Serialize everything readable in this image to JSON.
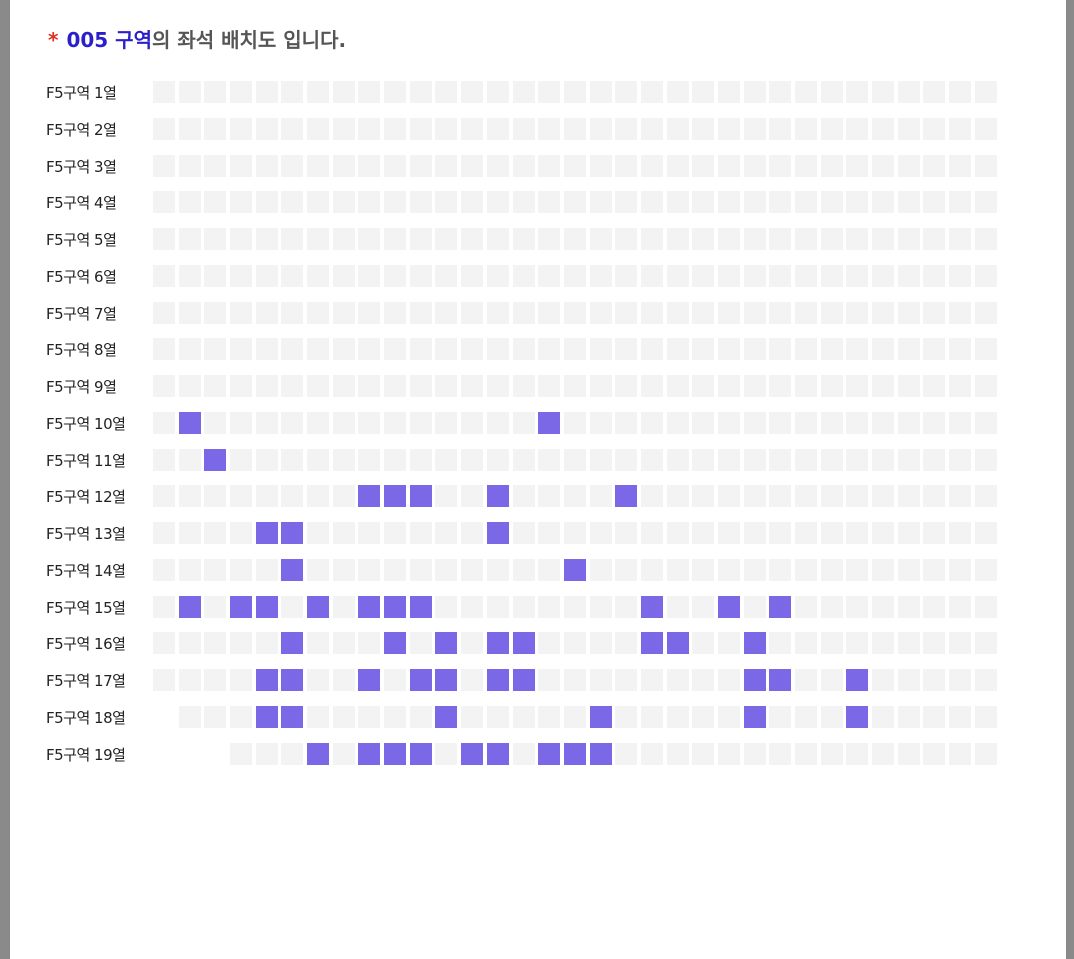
{
  "header": {
    "marker": "*",
    "section": "005 구역",
    "text": "의 좌석 배치도 입니다."
  },
  "rows": [
    {
      "label": "F5구역 1열",
      "seats": [
        0,
        0,
        0,
        0,
        0,
        0,
        0,
        0,
        0,
        0,
        0,
        0,
        0,
        0,
        0,
        0,
        0,
        0,
        0,
        0,
        0,
        0,
        0,
        0,
        0,
        0,
        0,
        0,
        0,
        0,
        0,
        0,
        0
      ]
    },
    {
      "label": "F5구역 2열",
      "seats": [
        0,
        0,
        0,
        0,
        0,
        0,
        0,
        0,
        0,
        0,
        0,
        0,
        0,
        0,
        0,
        0,
        0,
        0,
        0,
        0,
        0,
        0,
        0,
        0,
        0,
        0,
        0,
        0,
        0,
        0,
        0,
        0,
        0
      ]
    },
    {
      "label": "F5구역 3열",
      "seats": [
        0,
        0,
        0,
        0,
        0,
        0,
        0,
        0,
        0,
        0,
        0,
        0,
        0,
        0,
        0,
        0,
        0,
        0,
        0,
        0,
        0,
        0,
        0,
        0,
        0,
        0,
        0,
        0,
        0,
        0,
        0,
        0,
        0
      ]
    },
    {
      "label": "F5구역 4열",
      "seats": [
        0,
        0,
        0,
        0,
        0,
        0,
        0,
        0,
        0,
        0,
        0,
        0,
        0,
        0,
        0,
        0,
        0,
        0,
        0,
        0,
        0,
        0,
        0,
        0,
        0,
        0,
        0,
        0,
        0,
        0,
        0,
        0,
        0
      ]
    },
    {
      "label": "F5구역 5열",
      "seats": [
        0,
        0,
        0,
        0,
        0,
        0,
        0,
        0,
        0,
        0,
        0,
        0,
        0,
        0,
        0,
        0,
        0,
        0,
        0,
        0,
        0,
        0,
        0,
        0,
        0,
        0,
        0,
        0,
        0,
        0,
        0,
        0,
        0
      ]
    },
    {
      "label": "F5구역 6열",
      "seats": [
        0,
        0,
        0,
        0,
        0,
        0,
        0,
        0,
        0,
        0,
        0,
        0,
        0,
        0,
        0,
        0,
        0,
        0,
        0,
        0,
        0,
        0,
        0,
        0,
        0,
        0,
        0,
        0,
        0,
        0,
        0,
        0,
        0
      ]
    },
    {
      "label": "F5구역 7열",
      "seats": [
        0,
        0,
        0,
        0,
        0,
        0,
        0,
        0,
        0,
        0,
        0,
        0,
        0,
        0,
        0,
        0,
        0,
        0,
        0,
        0,
        0,
        0,
        0,
        0,
        0,
        0,
        0,
        0,
        0,
        0,
        0,
        0,
        0
      ]
    },
    {
      "label": "F5구역 8열",
      "seats": [
        0,
        0,
        0,
        0,
        0,
        0,
        0,
        0,
        0,
        0,
        0,
        0,
        0,
        0,
        0,
        0,
        0,
        0,
        0,
        0,
        0,
        0,
        0,
        0,
        0,
        0,
        0,
        0,
        0,
        0,
        0,
        0,
        0
      ]
    },
    {
      "label": "F5구역 9열",
      "seats": [
        0,
        0,
        0,
        0,
        0,
        0,
        0,
        0,
        0,
        0,
        0,
        0,
        0,
        0,
        0,
        0,
        0,
        0,
        0,
        0,
        0,
        0,
        0,
        0,
        0,
        0,
        0,
        0,
        0,
        0,
        0,
        0,
        0
      ]
    },
    {
      "label": "F5구역 10열",
      "seats": [
        0,
        1,
        0,
        0,
        0,
        0,
        0,
        0,
        0,
        0,
        0,
        0,
        0,
        0,
        0,
        1,
        0,
        0,
        0,
        0,
        0,
        0,
        0,
        0,
        0,
        0,
        0,
        0,
        0,
        0,
        0,
        0,
        0
      ]
    },
    {
      "label": "F5구역 11열",
      "seats": [
        0,
        0,
        1,
        0,
        0,
        0,
        0,
        0,
        0,
        0,
        0,
        0,
        0,
        0,
        0,
        0,
        0,
        0,
        0,
        0,
        0,
        0,
        0,
        0,
        0,
        0,
        0,
        0,
        0,
        0,
        0,
        0,
        0
      ]
    },
    {
      "label": "F5구역 12열",
      "seats": [
        0,
        0,
        0,
        0,
        0,
        0,
        0,
        0,
        1,
        1,
        1,
        0,
        0,
        1,
        0,
        0,
        0,
        0,
        1,
        0,
        0,
        0,
        0,
        0,
        0,
        0,
        0,
        0,
        0,
        0,
        0,
        0,
        0
      ]
    },
    {
      "label": "F5구역 13열",
      "seats": [
        0,
        0,
        0,
        0,
        1,
        1,
        0,
        0,
        0,
        0,
        0,
        0,
        0,
        1,
        0,
        0,
        0,
        0,
        0,
        0,
        0,
        0,
        0,
        0,
        0,
        0,
        0,
        0,
        0,
        0,
        0,
        0,
        0
      ]
    },
    {
      "label": "F5구역 14열",
      "seats": [
        0,
        0,
        0,
        0,
        0,
        1,
        0,
        0,
        0,
        0,
        0,
        0,
        0,
        0,
        0,
        0,
        1,
        0,
        0,
        0,
        0,
        0,
        0,
        0,
        0,
        0,
        0,
        0,
        0,
        0,
        0,
        0,
        0
      ]
    },
    {
      "label": "F5구역 15열",
      "seats": [
        0,
        1,
        0,
        1,
        1,
        0,
        1,
        0,
        1,
        1,
        1,
        0,
        0,
        0,
        0,
        0,
        0,
        0,
        0,
        1,
        0,
        0,
        1,
        0,
        1,
        0,
        0,
        0,
        0,
        0,
        0,
        0,
        0
      ]
    },
    {
      "label": "F5구역 16열",
      "seats": [
        0,
        0,
        0,
        0,
        0,
        1,
        0,
        0,
        0,
        1,
        0,
        1,
        0,
        1,
        1,
        0,
        0,
        0,
        0,
        1,
        1,
        0,
        0,
        1,
        0,
        0,
        0,
        0,
        0,
        0,
        0,
        0,
        0
      ]
    },
    {
      "label": "F5구역 17열",
      "seats": [
        0,
        0,
        0,
        0,
        1,
        1,
        0,
        0,
        1,
        0,
        1,
        1,
        0,
        1,
        1,
        0,
        0,
        0,
        0,
        0,
        0,
        0,
        0,
        1,
        1,
        0,
        0,
        1,
        0,
        0,
        0,
        0,
        0
      ]
    },
    {
      "label": "F5구역 18열",
      "seats": [
        null,
        0,
        0,
        0,
        1,
        1,
        0,
        0,
        0,
        0,
        0,
        1,
        0,
        0,
        0,
        0,
        0,
        1,
        0,
        0,
        0,
        0,
        0,
        1,
        0,
        0,
        0,
        1,
        0,
        0,
        0,
        0,
        0
      ]
    },
    {
      "label": "F5구역 19열",
      "seats": [
        null,
        null,
        null,
        0,
        0,
        0,
        1,
        0,
        1,
        1,
        1,
        0,
        1,
        1,
        0,
        1,
        1,
        1,
        0,
        0,
        0,
        0,
        0,
        0,
        0,
        0,
        0,
        0,
        0,
        0,
        0,
        0,
        0
      ]
    }
  ]
}
